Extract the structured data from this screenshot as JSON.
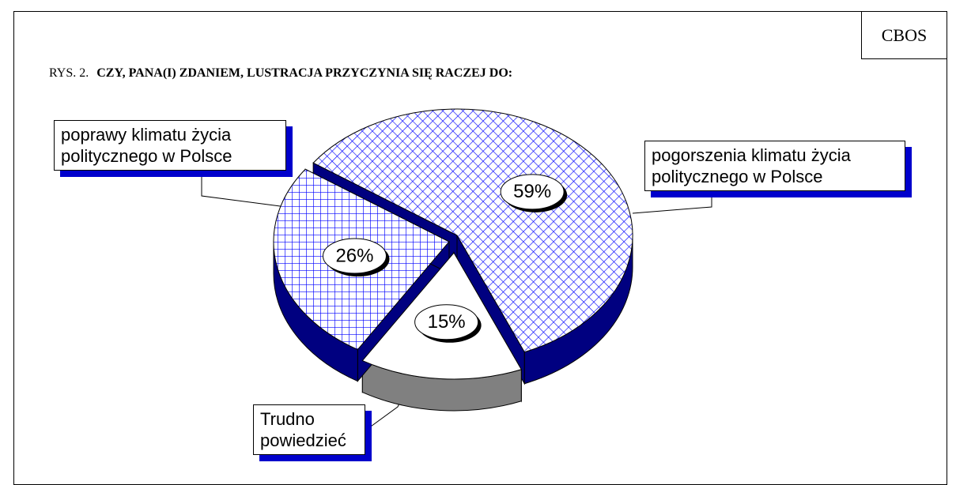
{
  "header": {
    "badge": "CBOS",
    "prefix": "RYS. 2."
  },
  "chart_data": {
    "type": "pie3d",
    "title": "CZY, PANA(I) ZDANIEM, LUSTRACJA PRZYCZYNIA SIĘ RACZEJ DO:",
    "categories": [
      "pogorszenia klimatu życia politycznego w Polsce",
      "Trudno powiedzieć",
      "poprawy klimatu życia politycznego w Polsce"
    ],
    "values": [
      59,
      15,
      26
    ],
    "value_labels": [
      "59%",
      "15%",
      "26%"
    ],
    "colors": [
      "#0000ff",
      "#ffffff",
      "#0000ff"
    ],
    "patterns": [
      "crosshatch",
      "none",
      "grid"
    ],
    "side_colors": [
      "#000080",
      "#808080",
      "#000080"
    ]
  }
}
